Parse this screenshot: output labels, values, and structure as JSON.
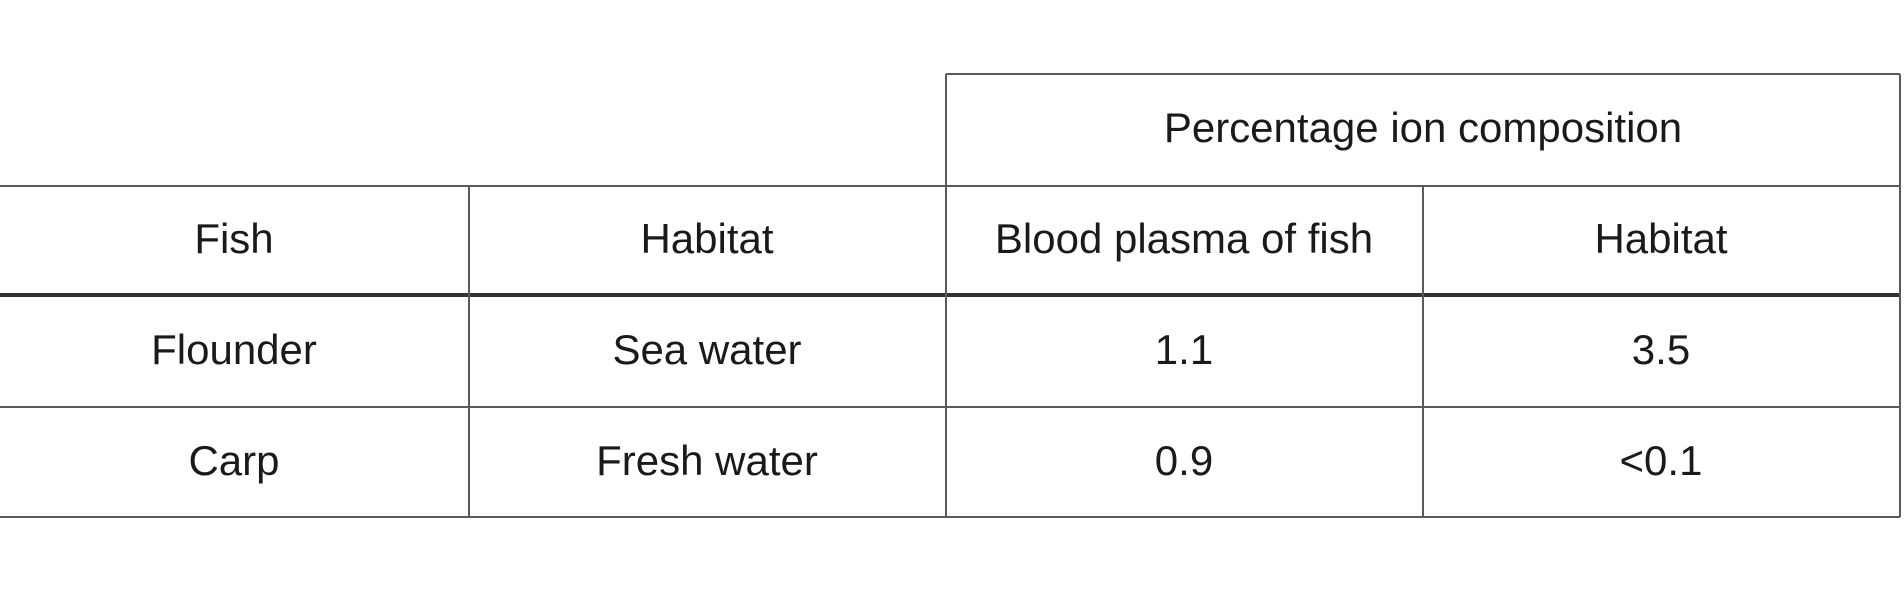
{
  "table": {
    "group_header": "Percentage ion composition",
    "columns": [
      "Fish",
      "Habitat",
      "Blood plasma of fish",
      "Habitat"
    ],
    "rows": [
      [
        "Flounder",
        "Sea water",
        "1.1",
        "3.5"
      ],
      [
        "Carp",
        "Fresh water",
        "0.9",
        "<0.1"
      ]
    ]
  }
}
